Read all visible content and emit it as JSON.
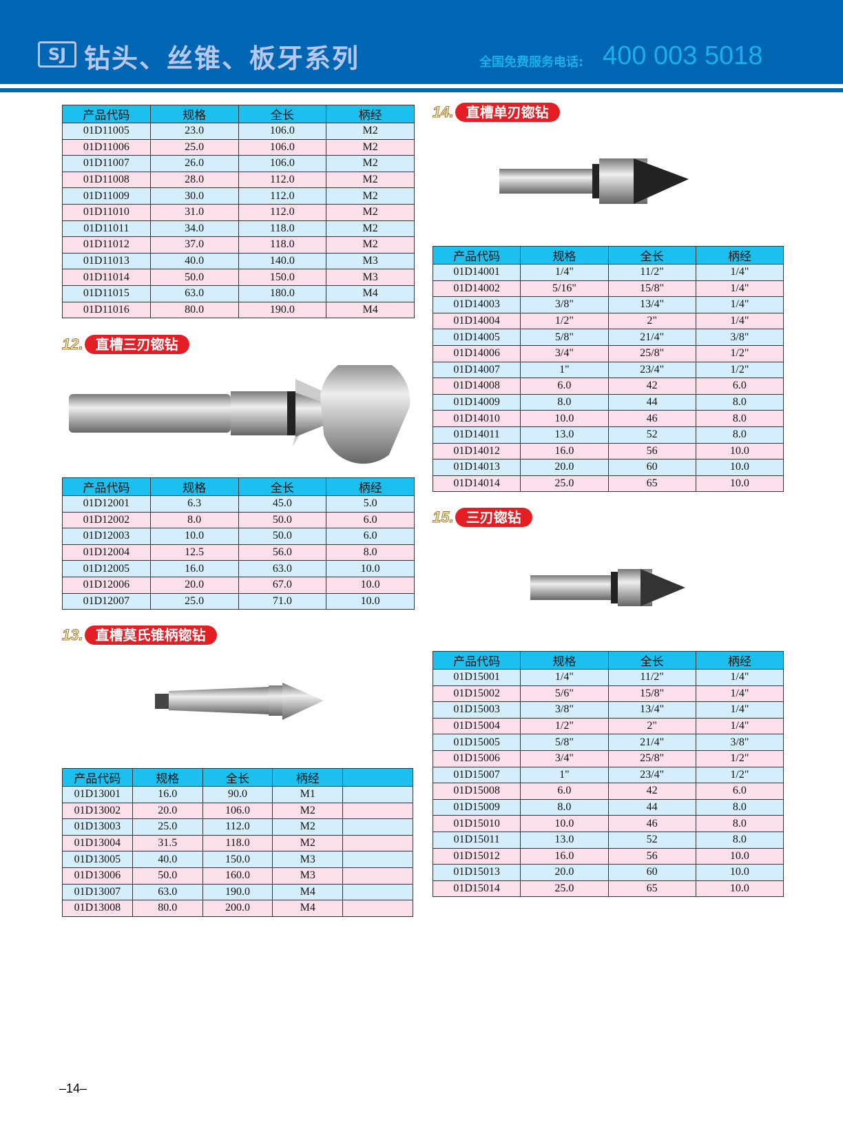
{
  "header": {
    "logo": "SJ",
    "title": "钻头、丝锥、板牙系列",
    "hotline_label": "全国免费服务电话:",
    "hotline": "400 003 5018",
    "color": "#0066b3"
  },
  "columns": [
    "产品代码",
    "规格",
    "全长",
    "柄经"
  ],
  "table11": {
    "rows": [
      [
        "01D11005",
        "23.0",
        "106.0",
        "M2"
      ],
      [
        "01D11006",
        "25.0",
        "106.0",
        "M2"
      ],
      [
        "01D11007",
        "26.0",
        "106.0",
        "M2"
      ],
      [
        "01D11008",
        "28.0",
        "112.0",
        "M2"
      ],
      [
        "01D11009",
        "30.0",
        "112.0",
        "M2"
      ],
      [
        "01D11010",
        "31.0",
        "112.0",
        "M2"
      ],
      [
        "01D11011",
        "34.0",
        "118.0",
        "M2"
      ],
      [
        "01D11012",
        "37.0",
        "118.0",
        "M2"
      ],
      [
        "01D11013",
        "40.0",
        "140.0",
        "M3"
      ],
      [
        "01D11014",
        "50.0",
        "150.0",
        "M3"
      ],
      [
        "01D11015",
        "63.0",
        "180.0",
        "M4"
      ],
      [
        "01D11016",
        "80.0",
        "190.0",
        "M4"
      ]
    ]
  },
  "section12": {
    "num": "12.",
    "title": "直槽三刃锪钻",
    "rows": [
      [
        "01D12001",
        "6.3",
        "45.0",
        "5.0"
      ],
      [
        "01D12002",
        "8.0",
        "50.0",
        "6.0"
      ],
      [
        "01D12003",
        "10.0",
        "50.0",
        "6.0"
      ],
      [
        "01D12004",
        "12.5",
        "56.0",
        "8.0"
      ],
      [
        "01D12005",
        "16.0",
        "63.0",
        "10.0"
      ],
      [
        "01D12006",
        "20.0",
        "67.0",
        "10.0"
      ],
      [
        "01D12007",
        "25.0",
        "71.0",
        "10.0"
      ]
    ]
  },
  "section13": {
    "num": "13.",
    "title": "直槽莫氏锥柄锪钻",
    "rows": [
      [
        "01D13001",
        "16.0",
        "90.0",
        "M1",
        ""
      ],
      [
        "01D13002",
        "20.0",
        "106.0",
        "M2",
        ""
      ],
      [
        "01D13003",
        "25.0",
        "112.0",
        "M2",
        ""
      ],
      [
        "01D13004",
        "31.5",
        "118.0",
        "M2",
        ""
      ],
      [
        "01D13005",
        "40.0",
        "150.0",
        "M3",
        ""
      ],
      [
        "01D13006",
        "50.0",
        "160.0",
        "M3",
        ""
      ],
      [
        "01D13007",
        "63.0",
        "190.0",
        "M4",
        ""
      ],
      [
        "01D13008",
        "80.0",
        "200.0",
        "M4",
        ""
      ]
    ]
  },
  "section14": {
    "num": "14.",
    "title": "直槽单刃锪钻",
    "rows": [
      [
        "01D14001",
        "1/4\"",
        "11/2\"",
        "1/4\""
      ],
      [
        "01D14002",
        "5/16\"",
        "15/8\"",
        "1/4\""
      ],
      [
        "01D14003",
        "3/8\"",
        "13/4\"",
        "1/4\""
      ],
      [
        "01D14004",
        "1/2\"",
        "2\"",
        "1/4\""
      ],
      [
        "01D14005",
        "5/8\"",
        "21/4\"",
        "3/8\""
      ],
      [
        "01D14006",
        "3/4\"",
        "25/8\"",
        "1/2\""
      ],
      [
        "01D14007",
        "1\"",
        "23/4\"",
        "1/2\""
      ],
      [
        "01D14008",
        "6.0",
        "42",
        "6.0"
      ],
      [
        "01D14009",
        "8.0",
        "44",
        "8.0"
      ],
      [
        "01D14010",
        "10.0",
        "46",
        "8.0"
      ],
      [
        "01D14011",
        "13.0",
        "52",
        "8.0"
      ],
      [
        "01D14012",
        "16.0",
        "56",
        "10.0"
      ],
      [
        "01D14013",
        "20.0",
        "60",
        "10.0"
      ],
      [
        "01D14014",
        "25.0",
        "65",
        "10.0"
      ]
    ]
  },
  "section15": {
    "num": "15.",
    "title": "三刃锪钻",
    "rows": [
      [
        "01D15001",
        "1/4\"",
        "11/2\"",
        "1/4\""
      ],
      [
        "01D15002",
        "5/6\"",
        "15/8\"",
        "1/4\""
      ],
      [
        "01D15003",
        "3/8\"",
        "13/4\"",
        "1/4\""
      ],
      [
        "01D15004",
        "1/2\"",
        "2\"",
        "1/4\""
      ],
      [
        "01D15005",
        "5/8\"",
        "21/4\"",
        "3/8\""
      ],
      [
        "01D15006",
        "3/4\"",
        "25/8\"",
        "1/2\""
      ],
      [
        "01D15007",
        "1\"",
        "23/4\"",
        "1/2\""
      ],
      [
        "01D15008",
        "6.0",
        "42",
        "6.0"
      ],
      [
        "01D15009",
        "8.0",
        "44",
        "8.0"
      ],
      [
        "01D15010",
        "10.0",
        "46",
        "8.0"
      ],
      [
        "01D15011",
        "13.0",
        "52",
        "8.0"
      ],
      [
        "01D15012",
        "16.0",
        "56",
        "10.0"
      ],
      [
        "01D15013",
        "20.0",
        "60",
        "10.0"
      ],
      [
        "01D15014",
        "25.0",
        "65",
        "10.0"
      ]
    ]
  },
  "page_number": "–14–"
}
